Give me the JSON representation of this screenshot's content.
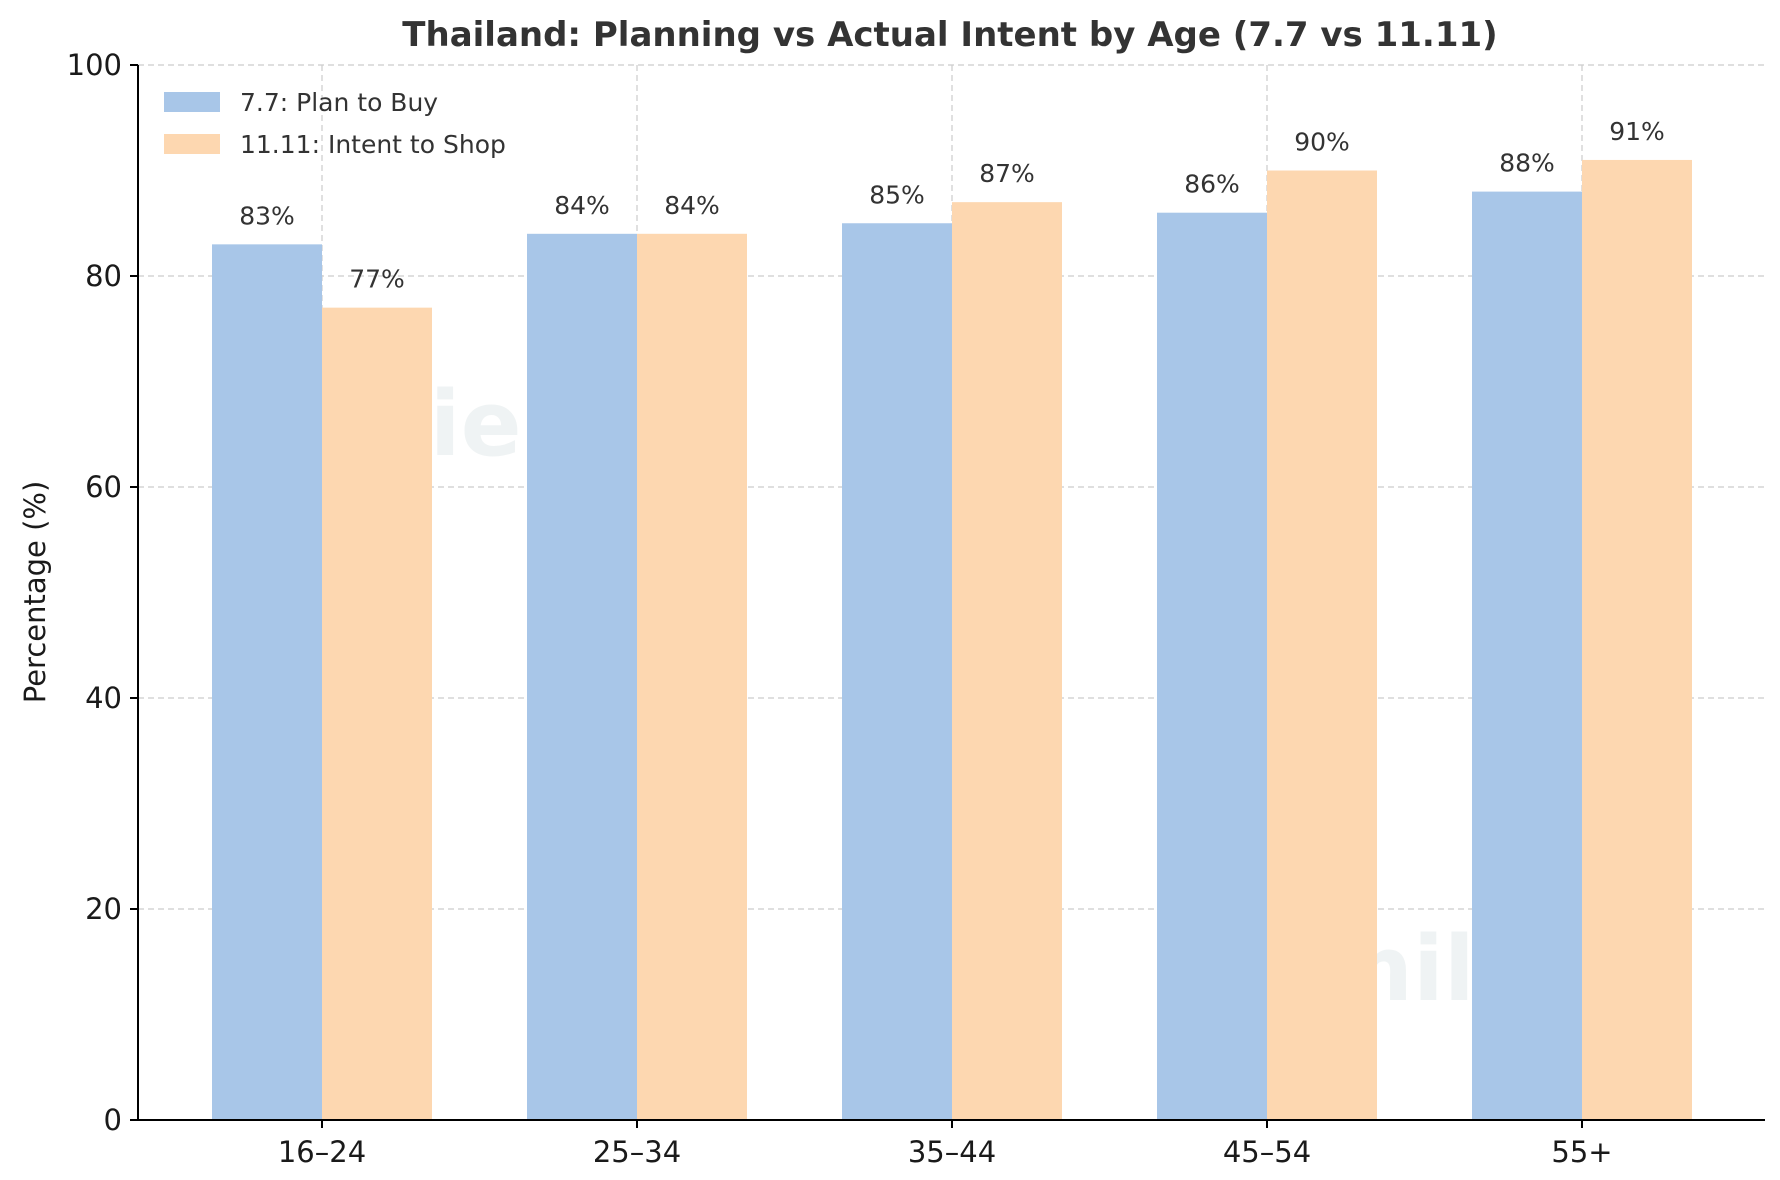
{
  "chart_data": {
    "type": "bar",
    "title": "Thailand: Planning vs Actual Intent by Age (7.7 vs 11.11)",
    "xlabel": "",
    "ylabel": "Percentage (%)",
    "categories": [
      "16–24",
      "25–34",
      "35–44",
      "45–54",
      "55+"
    ],
    "series": [
      {
        "name": "7.7: Plan to Buy",
        "values": [
          83,
          84,
          85,
          86,
          88
        ],
        "labels": [
          "83%",
          "84%",
          "85%",
          "86%",
          "88%"
        ],
        "color": "#a8c6e8"
      },
      {
        "name": "11.11: Intent to Shop",
        "values": [
          77,
          84,
          87,
          90,
          91
        ],
        "labels": [
          "77%",
          "84%",
          "87%",
          "90%",
          "91%"
        ],
        "color": "#fdd7b0"
      }
    ],
    "ylim": [
      0,
      100
    ],
    "yticks": [
      0,
      20,
      40,
      60,
      80,
      100
    ],
    "grid": true,
    "legend_position": "top-left"
  },
  "watermarks": [
    "milieu",
    "milieu"
  ]
}
